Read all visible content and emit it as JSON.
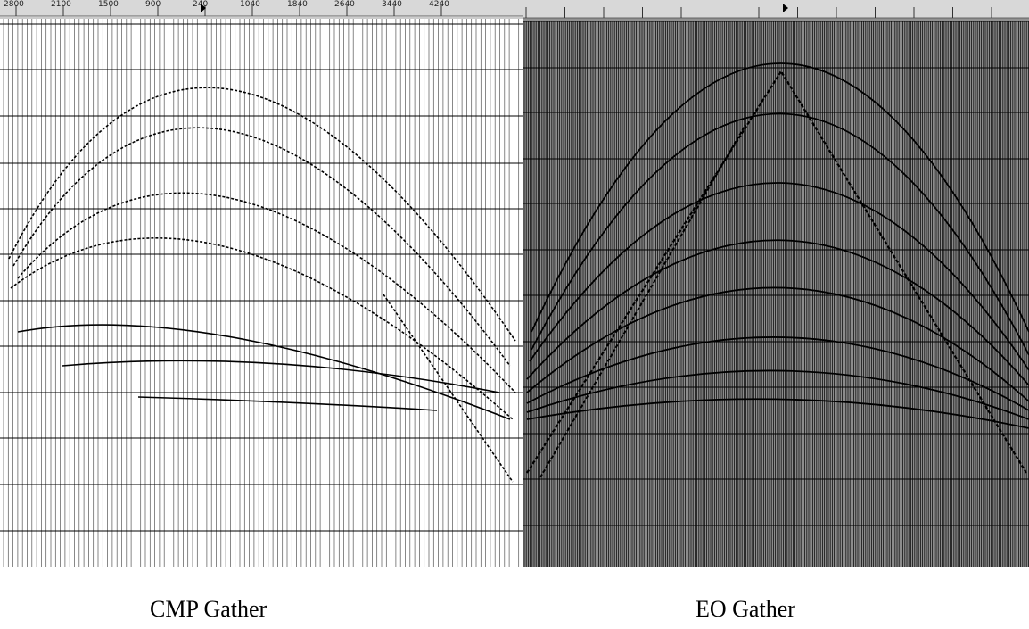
{
  "figure": {
    "left_panel": {
      "caption": "CMP Gather",
      "ruler_labels": [
        "2800",
        "2100",
        "1500",
        "900",
        "240",
        "1040",
        "1840",
        "2640",
        "3440",
        "4240"
      ]
    },
    "right_panel": {
      "caption": "EO Gather"
    }
  }
}
